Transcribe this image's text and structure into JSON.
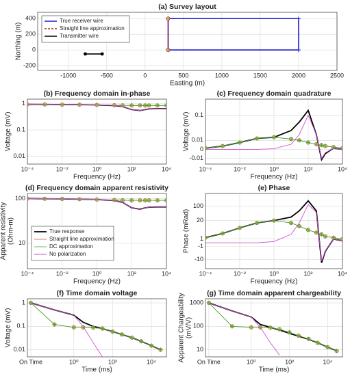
{
  "chart_data": [
    {
      "type": "line",
      "title": "(a) Survey layout",
      "xlabel": "Easting (m)",
      "ylabel": "Northing (m)",
      "xlim": [
        -1400,
        2500
      ],
      "ylim": [
        -260,
        480
      ],
      "xticks": [
        -1000,
        -500,
        0,
        500,
        1000,
        1500,
        2000,
        2500
      ],
      "yticks": [
        -200,
        0,
        200,
        400
      ],
      "grid": true,
      "legend": "upper left",
      "series": [
        {
          "name": "True receiver wire",
          "color": "#1f1fd0",
          "linewidth": 1.6,
          "marker": "plus",
          "x": [
            300,
            2000,
            2000,
            300,
            300
          ],
          "values": [
            400,
            400,
            0,
            0,
            400
          ]
        },
        {
          "name": "Straight line approximation",
          "color": "#b22222",
          "linewidth": 1.6,
          "dash": true,
          "marker": "circle",
          "x": [
            300,
            300
          ],
          "values": [
            400,
            0
          ]
        },
        {
          "name": "Transmitter wire",
          "color": "#000000",
          "linewidth": 1.6,
          "marker": "dot",
          "x": [
            -780,
            -560
          ],
          "values": [
            -50,
            -50
          ]
        }
      ]
    },
    {
      "type": "line",
      "title": "(b) Frequency domain in-phase",
      "xlabel": "Frequency (Hz)",
      "ylabel": "Voltage (mV)",
      "xscale": "log",
      "yscale": "log",
      "xlim": [
        0.0001,
        10000
      ],
      "ylim": [
        0.005,
        1.5
      ],
      "xticks": [
        {
          "value": 0.0001,
          "label": "10⁻⁴"
        },
        {
          "value": 0.01,
          "label": "10⁻²"
        },
        {
          "value": 1,
          "label": "10⁰"
        },
        {
          "value": 100,
          "label": "10²"
        },
        {
          "value": 10000,
          "label": "10⁴"
        }
      ],
      "yticks": [
        0.01,
        0.1,
        1
      ],
      "grid": true,
      "x": [
        0.0001,
        0.001,
        0.01,
        0.1,
        1,
        10,
        30,
        100,
        300,
        600,
        1000,
        3000,
        10000
      ],
      "series": [
        {
          "color": "#000000",
          "linewidth": 1.8,
          "values": [
            0.95,
            0.94,
            0.93,
            0.92,
            0.9,
            0.85,
            0.78,
            0.6,
            0.55,
            0.6,
            0.63,
            0.65,
            0.65
          ]
        },
        {
          "color": "#c0602a",
          "linewidth": 0.8,
          "marker": "circle",
          "values": [
            0.95,
            0.94,
            0.93,
            0.92,
            0.9,
            0.88,
            0.87,
            0.86,
            0.86,
            0.86,
            0.86,
            0.86,
            0.86
          ]
        },
        {
          "color": "#3aa63a",
          "linewidth": 0.8,
          "marker": "plus",
          "values": [
            0.95,
            0.94,
            0.93,
            0.92,
            0.9,
            0.88,
            0.87,
            0.86,
            0.86,
            0.86,
            0.86,
            0.86,
            0.86
          ]
        },
        {
          "color": "#d050d0",
          "linewidth": 0.9,
          "values": [
            0.95,
            0.95,
            0.94,
            0.93,
            0.91,
            0.86,
            0.79,
            0.61,
            0.55,
            0.6,
            0.63,
            0.65,
            0.65
          ]
        }
      ]
    },
    {
      "type": "line",
      "title": "(c) Frequency domain quadrature",
      "xlabel": "Frequency (Hz)",
      "ylabel": "Voltage (mV)",
      "xscale": "log",
      "yscale": "symlog",
      "linthresh": 0.013,
      "xlim": [
        0.0001,
        10000
      ],
      "ylim": [
        -0.02,
        0.3
      ],
      "xticks": [
        {
          "value": 0.0001,
          "label": "10⁻⁴"
        },
        {
          "value": 0.01,
          "label": "10⁻²"
        },
        {
          "value": 1,
          "label": "10⁰"
        },
        {
          "value": 100,
          "label": "10²"
        },
        {
          "value": 10000,
          "label": "10⁴"
        }
      ],
      "yticks": [
        -0.01,
        0,
        0.01,
        0.1
      ],
      "grid": true,
      "x": [
        0.0001,
        0.001,
        0.01,
        0.1,
        1,
        10,
        30,
        100,
        300,
        600,
        1000,
        3000,
        10000
      ],
      "series": [
        {
          "color": "#000000",
          "linewidth": 1.8,
          "values": [
            0.001,
            0.003,
            0.007,
            0.013,
            0.015,
            0.03,
            0.06,
            0.14,
            0.02,
            -0.012,
            -0.004,
            0.001,
            0
          ]
        },
        {
          "color": "#c0602a",
          "linewidth": 0.8,
          "marker": "circle",
          "values": [
            0.001,
            0.003,
            0.007,
            0.013,
            0.015,
            0.012,
            0.01,
            0.007,
            0.005,
            0.004,
            0.003,
            0.002,
            0.001
          ]
        },
        {
          "color": "#3aa63a",
          "linewidth": 0.8,
          "marker": "plus",
          "values": [
            0.001,
            0.003,
            0.007,
            0.013,
            0.015,
            0.012,
            0.01,
            0.007,
            0.005,
            0.004,
            0.003,
            0.002,
            0.001
          ]
        },
        {
          "color": "#d050d0",
          "linewidth": 0.9,
          "values": [
            0,
            0,
            0,
            0,
            0.0005,
            0.005,
            0.02,
            0.1,
            0.02,
            -0.01,
            -0.003,
            0.001,
            0
          ]
        }
      ]
    },
    {
      "type": "line",
      "title": "(d) Frequency domain apparent resistivity",
      "xlabel": "Frequency (Hz)",
      "ylabel": [
        "Apparent resistivity",
        "(Ohm-m)"
      ],
      "xscale": "log",
      "yscale": "log",
      "xlim": [
        0.0001,
        10000
      ],
      "ylim": [
        2.7,
        130
      ],
      "xticks": [
        {
          "value": 0.0001,
          "label": "10⁻⁴"
        },
        {
          "value": 0.01,
          "label": "10⁻²"
        },
        {
          "value": 1,
          "label": "10⁰"
        },
        {
          "value": 100,
          "label": "10²"
        },
        {
          "value": 10000,
          "label": "10⁴"
        }
      ],
      "yticks": [
        10,
        100
      ],
      "grid": true,
      "legend": "center left",
      "x": [
        0.0001,
        0.001,
        0.01,
        0.1,
        1,
        10,
        30,
        100,
        300,
        600,
        1000,
        3000,
        10000
      ],
      "series": [
        {
          "name": "True response",
          "color": "#000000",
          "linewidth": 1.8,
          "values": [
            100,
            99,
            98,
            97,
            95,
            90,
            82,
            62,
            58,
            62,
            64,
            65,
            65
          ]
        },
        {
          "name": "Straight line approximation",
          "color": "#c0602a",
          "linewidth": 0.8,
          "marker": "circle",
          "values": [
            100,
            99,
            98,
            97,
            95,
            93,
            92,
            91,
            91,
            91,
            91,
            91,
            91
          ]
        },
        {
          "name": "DC approximation",
          "color": "#3aa63a",
          "linewidth": 0.8,
          "marker": "plus",
          "values": [
            100,
            99,
            98,
            97,
            95,
            93,
            92,
            91,
            91,
            91,
            91,
            91,
            91
          ]
        },
        {
          "name": "No polarization",
          "color": "#d050d0",
          "linewidth": 0.9,
          "values": [
            100,
            100,
            99,
            98,
            96,
            90,
            82,
            62,
            58,
            62,
            64,
            65,
            65
          ]
        }
      ]
    },
    {
      "type": "line",
      "title": "(e) Phase",
      "xlabel": "Frequency (Hz)",
      "ylabel": "Phase (mRad)",
      "xscale": "log",
      "yscale": "symlog",
      "linthresh": 2,
      "xlim": [
        0.0001,
        10000
      ],
      "ylim": [
        -30,
        400
      ],
      "xticks": [
        {
          "value": 0.0001,
          "label": "10⁻⁴"
        },
        {
          "value": 0.01,
          "label": "10⁻²"
        },
        {
          "value": 1,
          "label": "10⁰"
        },
        {
          "value": 100,
          "label": "10²"
        },
        {
          "value": 10000,
          "label": "10⁴"
        }
      ],
      "yticks": [
        -10,
        -1,
        1,
        20,
        100
      ],
      "grid": true,
      "x": [
        0.0001,
        0.001,
        0.01,
        0.1,
        1,
        10,
        30,
        100,
        300,
        600,
        1000,
        3000,
        10000
      ],
      "series": [
        {
          "color": "#000000",
          "linewidth": 1.8,
          "values": [
            1.5,
            3.5,
            8,
            15,
            20,
            30,
            60,
            180,
            60,
            -15,
            -3,
            1,
            0.5
          ]
        },
        {
          "color": "#c0602a",
          "linewidth": 0.8,
          "marker": "circle",
          "values": [
            1.5,
            3.5,
            8,
            15,
            20,
            15,
            10,
            6,
            4,
            3,
            2,
            1.5,
            1
          ]
        },
        {
          "color": "#3aa63a",
          "linewidth": 0.8,
          "marker": "plus",
          "values": [
            1.5,
            3.5,
            8,
            15,
            20,
            15,
            10,
            6,
            4,
            3,
            2,
            1.5,
            1
          ]
        },
        {
          "color": "#d050d0",
          "linewidth": 0.9,
          "values": [
            0,
            0,
            0,
            0,
            0.3,
            3,
            15,
            120,
            50,
            -12,
            -3,
            1,
            0.5
          ]
        }
      ]
    },
    {
      "type": "line",
      "title": "(f) Time domain voltage",
      "xlabel": "Time (ms)",
      "ylabel": "Voltage (mV)",
      "xscale": "log",
      "yscale": "log",
      "xlim": [
        0.004,
        60000
      ],
      "ylim": [
        0.005,
        1.5
      ],
      "xticks": [
        {
          "value": 0.006,
          "label": "On Time"
        },
        {
          "value": 1,
          "label": "10⁰"
        },
        {
          "value": 100,
          "label": "10²"
        },
        {
          "value": 10000,
          "label": "10⁴"
        }
      ],
      "yticks": [
        0.01,
        0.1,
        1
      ],
      "grid": true,
      "x": [
        0.006,
        0.1,
        1,
        3,
        10,
        30,
        100,
        300,
        1000,
        3000,
        10000,
        30000
      ],
      "series": [
        {
          "color": "#000000",
          "linewidth": 1.8,
          "values": [
            1,
            0.5,
            0.3,
            0.15,
            0.1,
            0.08,
            0.06,
            0.045,
            0.033,
            0.023,
            0.015,
            0.01
          ]
        },
        {
          "color": "#c0602a",
          "linewidth": 0.8,
          "marker": "circle",
          "values": [
            1,
            0.12,
            0.09,
            0.09,
            0.088,
            0.08,
            0.06,
            0.045,
            0.033,
            0.023,
            0.015,
            0.01
          ]
        },
        {
          "color": "#3aa63a",
          "linewidth": 0.8,
          "marker": "plus",
          "values": [
            1,
            0.12,
            0.09,
            0.09,
            0.088,
            0.08,
            0.06,
            0.045,
            0.033,
            0.023,
            0.015,
            0.01
          ]
        },
        {
          "color": "#d050d0",
          "linewidth": 0.9,
          "values": [
            1,
            0.5,
            0.3,
            0.1,
            0.02,
            0.005,
            null,
            null,
            null,
            null,
            null,
            null
          ]
        }
      ]
    },
    {
      "type": "line",
      "title": "(g) Time domain apparent chargeability",
      "xlabel": "Time (ms)",
      "ylabel": [
        "Apparent Chargeability",
        "(mV/V)"
      ],
      "xscale": "log",
      "yscale": "log",
      "xlim": [
        0.004,
        60000
      ],
      "ylim": [
        5,
        1500
      ],
      "xticks": [
        {
          "value": 0.006,
          "label": "On Time"
        },
        {
          "value": 1,
          "label": "10⁰"
        },
        {
          "value": 100,
          "label": "10²"
        },
        {
          "value": 10000,
          "label": "10⁴"
        }
      ],
      "yticks": [
        10,
        100,
        1000
      ],
      "grid": true,
      "x": [
        0.006,
        0.1,
        1,
        3,
        10,
        30,
        100,
        300,
        1000,
        3000,
        10000,
        30000
      ],
      "series": [
        {
          "color": "#000000",
          "linewidth": 1.8,
          "values": [
            1000,
            450,
            250,
            120,
            90,
            70,
            50,
            38,
            28,
            20,
            13,
            9
          ]
        },
        {
          "color": "#c0602a",
          "linewidth": 0.8,
          "marker": "circle",
          "values": [
            1000,
            100,
            90,
            90,
            88,
            75,
            55,
            40,
            29,
            20,
            13,
            9
          ]
        },
        {
          "color": "#3aa63a",
          "linewidth": 0.8,
          "marker": "plus",
          "values": [
            1000,
            100,
            90,
            90,
            88,
            75,
            55,
            40,
            29,
            20,
            13,
            9
          ]
        },
        {
          "color": "#d050d0",
          "linewidth": 0.9,
          "values": [
            1000,
            450,
            250,
            90,
            20,
            6,
            null,
            null,
            null,
            null,
            null,
            null
          ]
        }
      ]
    }
  ]
}
